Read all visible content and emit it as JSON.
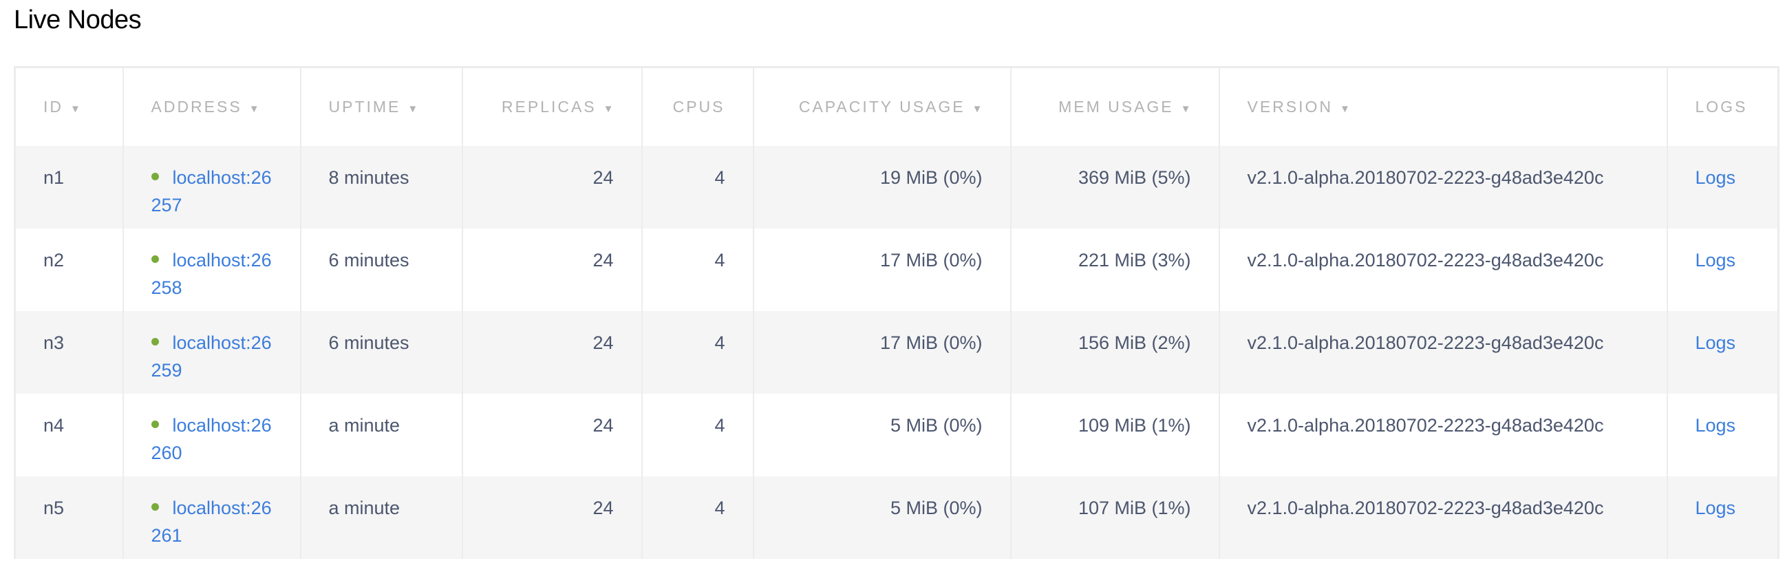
{
  "title": "Live Nodes",
  "colors": {
    "link": "#3b7ddd",
    "status_live": "#7aab3a",
    "header_text": "#b3b3b3",
    "cell_text": "#4c566e",
    "row_alt_bg": "#f5f5f5"
  },
  "columns": [
    {
      "label": "ID",
      "sortable": true
    },
    {
      "label": "ADDRESS",
      "sortable": true
    },
    {
      "label": "UPTIME",
      "sortable": true
    },
    {
      "label": "REPLICAS",
      "sortable": true
    },
    {
      "label": "CPUS",
      "sortable": false
    },
    {
      "label": "CAPACITY USAGE",
      "sortable": true
    },
    {
      "label": "MEM USAGE",
      "sortable": true
    },
    {
      "label": "VERSION",
      "sortable": true
    },
    {
      "label": "LOGS",
      "sortable": false
    }
  ],
  "sort_icon": "caret-down-icon",
  "rows": [
    {
      "id": "n1",
      "address": "localhost:26257",
      "uptime": "8 minutes",
      "replicas": "24",
      "cpus": "4",
      "capacity": "19 MiB (0%)",
      "mem": "369 MiB (5%)",
      "version": "v2.1.0-alpha.20180702-2223-g48ad3e420c",
      "logs": "Logs"
    },
    {
      "id": "n2",
      "address": "localhost:26258",
      "uptime": "6 minutes",
      "replicas": "24",
      "cpus": "4",
      "capacity": "17 MiB (0%)",
      "mem": "221 MiB (3%)",
      "version": "v2.1.0-alpha.20180702-2223-g48ad3e420c",
      "logs": "Logs"
    },
    {
      "id": "n3",
      "address": "localhost:26259",
      "uptime": "6 minutes",
      "replicas": "24",
      "cpus": "4",
      "capacity": "17 MiB (0%)",
      "mem": "156 MiB (2%)",
      "version": "v2.1.0-alpha.20180702-2223-g48ad3e420c",
      "logs": "Logs"
    },
    {
      "id": "n4",
      "address": "localhost:26260",
      "uptime": "a minute",
      "replicas": "24",
      "cpus": "4",
      "capacity": "5 MiB (0%)",
      "mem": "109 MiB (1%)",
      "version": "v2.1.0-alpha.20180702-2223-g48ad3e420c",
      "logs": "Logs"
    },
    {
      "id": "n5",
      "address": "localhost:26261",
      "uptime": "a minute",
      "replicas": "24",
      "cpus": "4",
      "capacity": "5 MiB (0%)",
      "mem": "107 MiB (1%)",
      "version": "v2.1.0-alpha.20180702-2223-g48ad3e420c",
      "logs": "Logs"
    }
  ]
}
